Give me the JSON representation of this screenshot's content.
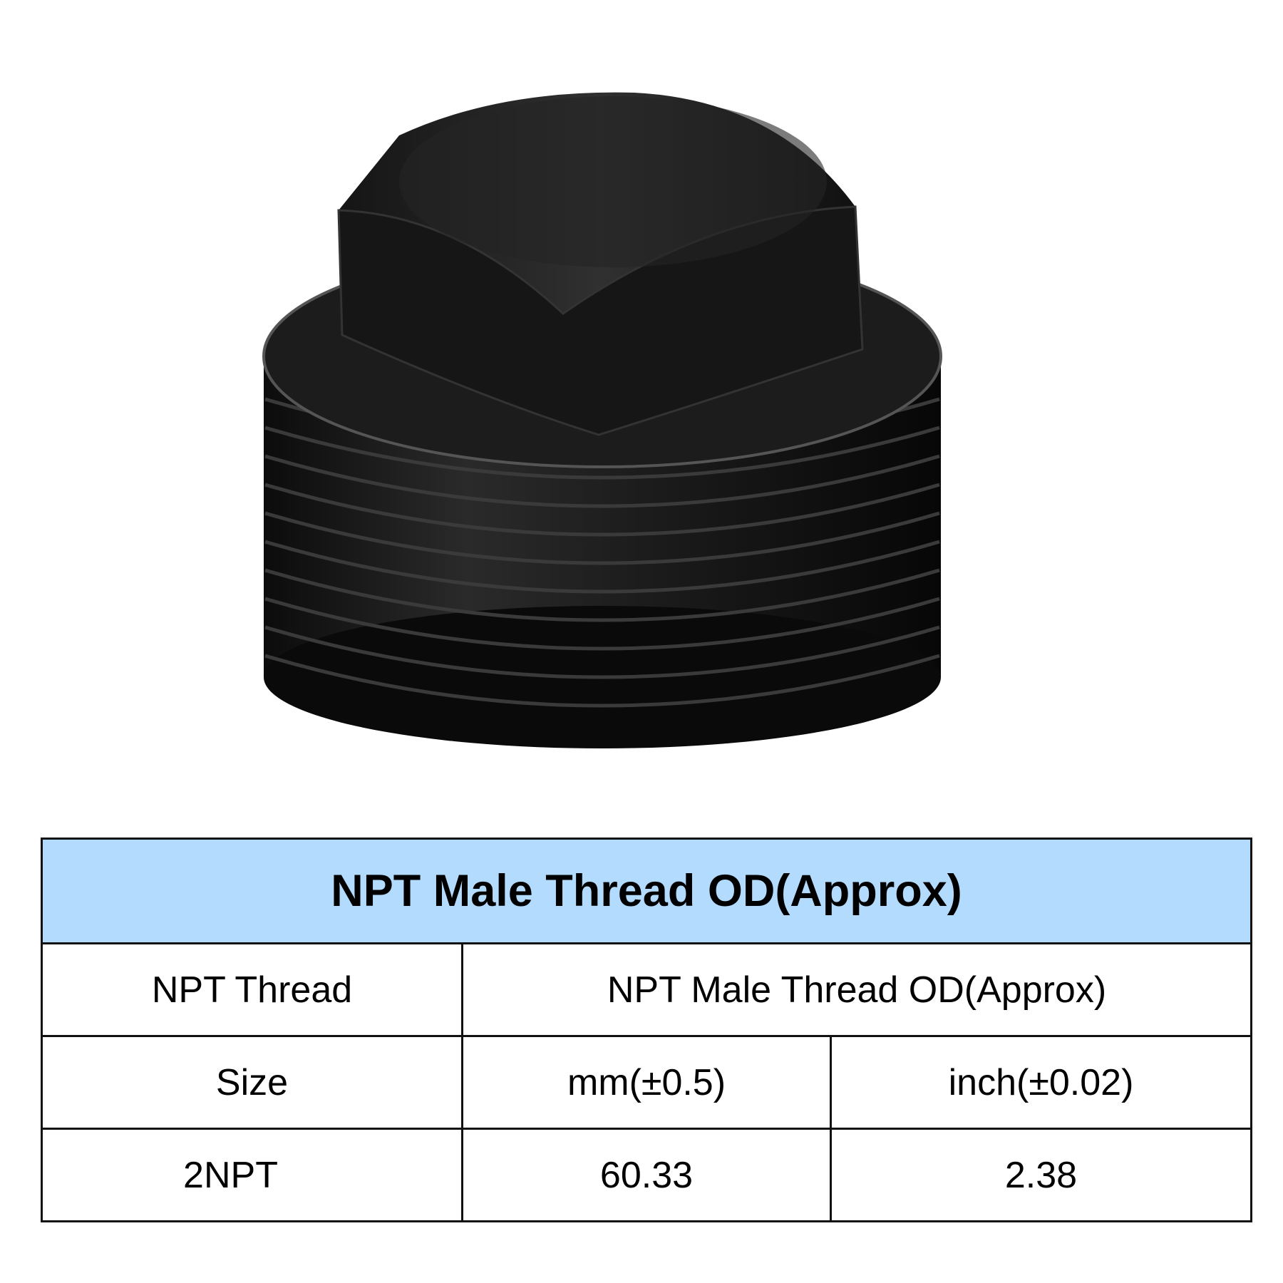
{
  "product_image": {
    "subject": "black NPT male threaded square head pipe plug"
  },
  "table": {
    "title": "NPT Male Thread OD(Approx)",
    "header_left": "NPT Thread",
    "header_right": "NPT Male Thread OD(Approx)",
    "size_label": "Size",
    "unit_mm": "mm(±0.5)",
    "unit_inch": "inch(±0.02)",
    "rows": [
      {
        "size": "2NPT",
        "mm": "60.33",
        "inch": "2.38"
      }
    ]
  },
  "colors": {
    "header_bg": "#b3dbfd",
    "border": "#111111"
  }
}
